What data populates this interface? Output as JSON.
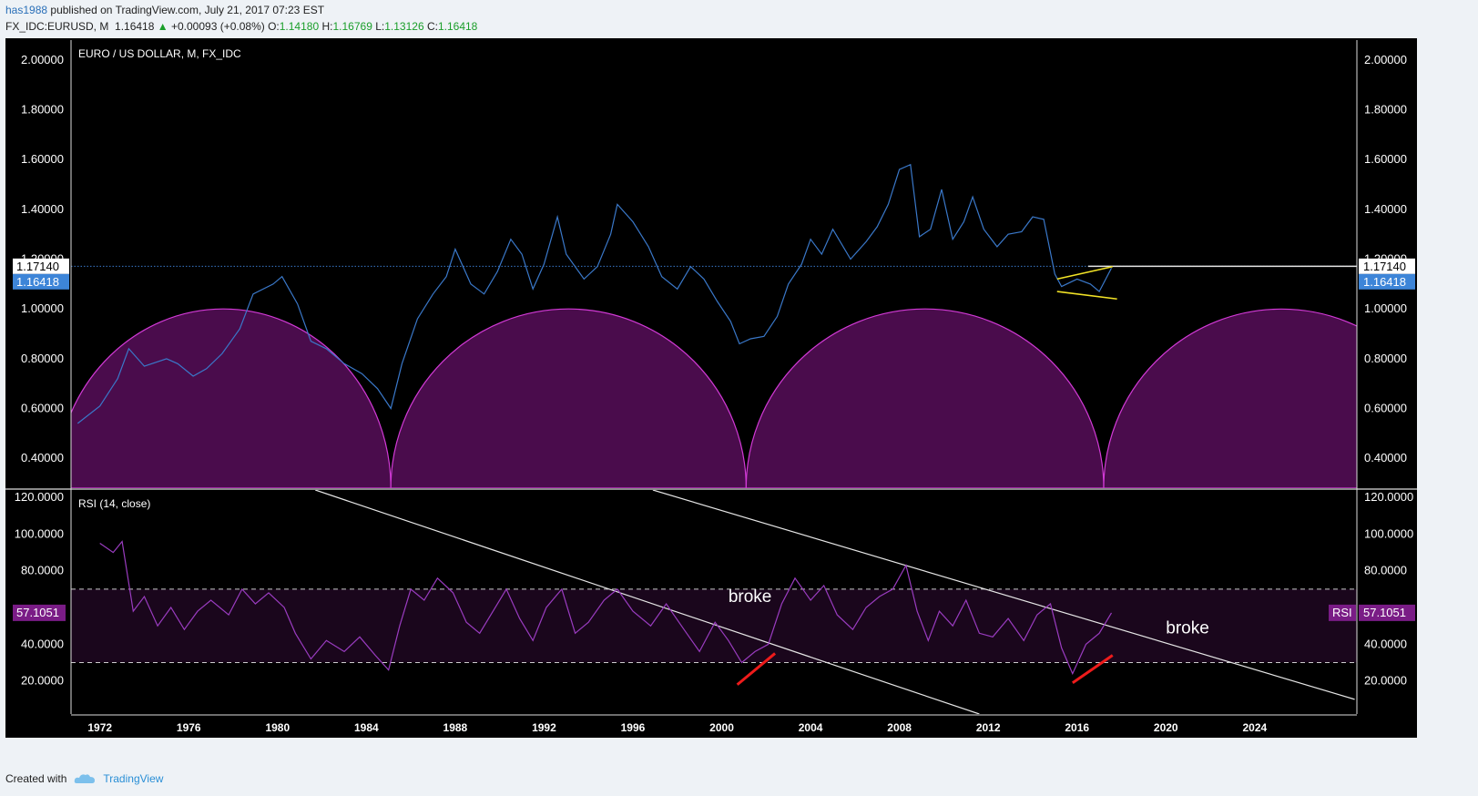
{
  "header": {
    "user": "has1988",
    "published": "published on TradingView.com, July 21, 2017 07:23 EST"
  },
  "symbol_line": {
    "symbol": "FX_IDC:EURUSD, M",
    "last": "1.16418",
    "arrow": "▲",
    "change": "+0.00093 (+0.08%)",
    "o_label": "O:",
    "o": "1.14180",
    "h_label": "H:",
    "h": "1.16769",
    "l_label": "L:",
    "l": "1.13126",
    "c_label": "C:",
    "c": "1.16418"
  },
  "footer": {
    "created": "Created with",
    "brand": "TradingView",
    "logo_icon": "tradingview-cloud-icon"
  },
  "colors": {
    "price_line": "#3a78c9",
    "rsi_line": "#9a3cc0",
    "arc_fill": "#4a0c4c",
    "arc_stroke": "#d23ad6",
    "trend": "#e6e6e6",
    "wedge": "#f2e326",
    "divergence": "#ee1b1b",
    "label_blue": "#3d85d8",
    "label_purple": "#7a1c86"
  },
  "chart_data": [
    {
      "type": "line",
      "pane": "price",
      "title": "EURO / US DOLLAR, M, FX_IDC",
      "ylim": [
        0.28,
        2.08
      ],
      "xlim": [
        1970.7,
        2028.6
      ],
      "ticks": [
        "2.00000",
        "1.80000",
        "1.60000",
        "1.40000",
        "1.20000",
        "1.00000",
        "0.80000",
        "0.60000",
        "0.40000"
      ],
      "tick_values": [
        2.0,
        1.8,
        1.6,
        1.4,
        1.2,
        1.0,
        0.8,
        0.6,
        0.4
      ],
      "grid": false,
      "series": [
        {
          "x": [
            1971.0,
            1972.0,
            1972.8,
            1973.3,
            1974.0,
            1975.0,
            1975.5,
            1976.2,
            1976.8,
            1977.5,
            1978.3,
            1978.9,
            1979.8,
            1980.2,
            1980.9,
            1981.5,
            1982.2,
            1983.0,
            1983.8,
            1984.5,
            1985.1,
            1985.6,
            1986.3,
            1987.0,
            1987.6,
            1988.0,
            1988.7,
            1989.3,
            1989.9,
            1990.5,
            1991.0,
            1991.5,
            1992.0,
            1992.6,
            1993.0,
            1993.8,
            1994.4,
            1995.0,
            1995.3,
            1996.0,
            1996.7,
            1997.3,
            1998.0,
            1998.6,
            1999.2,
            1999.8,
            2000.4,
            2000.8,
            2001.3,
            2001.9,
            2002.5,
            2003.0,
            2003.6,
            2004.0,
            2004.5,
            2005.0,
            2005.8,
            2006.5,
            2007.0,
            2007.5,
            2008.0,
            2008.5,
            2008.9,
            2009.4,
            2009.9,
            2010.4,
            2010.9,
            2011.3,
            2011.8,
            2012.4,
            2012.9,
            2013.5,
            2014.0,
            2014.5,
            2015.0,
            2015.3,
            2016.0,
            2016.6,
            2017.0,
            2017.55
          ],
          "values": [
            0.54,
            0.61,
            0.72,
            0.84,
            0.77,
            0.8,
            0.78,
            0.73,
            0.76,
            0.82,
            0.92,
            1.06,
            1.1,
            1.13,
            1.02,
            0.87,
            0.84,
            0.78,
            0.74,
            0.68,
            0.6,
            0.78,
            0.96,
            1.06,
            1.13,
            1.24,
            1.1,
            1.06,
            1.15,
            1.28,
            1.22,
            1.08,
            1.18,
            1.37,
            1.22,
            1.12,
            1.17,
            1.3,
            1.42,
            1.35,
            1.25,
            1.13,
            1.08,
            1.17,
            1.12,
            1.03,
            0.95,
            0.86,
            0.88,
            0.89,
            0.97,
            1.1,
            1.18,
            1.28,
            1.22,
            1.32,
            1.2,
            1.27,
            1.33,
            1.42,
            1.56,
            1.58,
            1.29,
            1.32,
            1.48,
            1.28,
            1.35,
            1.45,
            1.32,
            1.25,
            1.3,
            1.31,
            1.37,
            1.36,
            1.14,
            1.09,
            1.12,
            1.1,
            1.07,
            1.16418
          ]
        }
      ],
      "annotations": [
        "1.17140",
        "1.16418"
      ],
      "horizontal_line": 1.1714
    },
    {
      "type": "line",
      "pane": "rsi",
      "title": "RSI (14, close)",
      "ylim": [
        2,
        124
      ],
      "ticks": [
        "120.0000",
        "100.0000",
        "80.0000",
        "60.0000",
        "40.0000",
        "20.0000"
      ],
      "tick_values": [
        120,
        100,
        80,
        60,
        40,
        20
      ],
      "bands": [
        30,
        70
      ],
      "series": [
        {
          "name": "RSI",
          "x": [
            1972.0,
            1972.6,
            1973.0,
            1973.5,
            1974.0,
            1974.6,
            1975.2,
            1975.8,
            1976.4,
            1977.0,
            1977.8,
            1978.4,
            1979.0,
            1979.6,
            1980.3,
            1980.8,
            1981.5,
            1982.2,
            1983.0,
            1983.7,
            1984.4,
            1985.0,
            1985.5,
            1986.0,
            1986.6,
            1987.2,
            1987.9,
            1988.5,
            1989.1,
            1989.7,
            1990.3,
            1990.9,
            1991.5,
            1992.1,
            1992.8,
            1993.4,
            1994.0,
            1994.7,
            1995.3,
            1996.0,
            1996.8,
            1997.5,
            1998.3,
            1999.0,
            1999.7,
            2000.3,
            2000.9,
            2001.5,
            2002.1,
            2002.7,
            2003.3,
            2004.0,
            2004.6,
            2005.2,
            2005.9,
            2006.5,
            2007.1,
            2007.7,
            2008.3,
            2008.8,
            2009.3,
            2009.8,
            2010.4,
            2011.0,
            2011.6,
            2012.2,
            2012.9,
            2013.6,
            2014.2,
            2014.8,
            2015.3,
            2015.8,
            2016.4,
            2017.0,
            2017.55
          ],
          "values": [
            95,
            90,
            96,
            58,
            66,
            50,
            60,
            48,
            58,
            64,
            56,
            70,
            62,
            68,
            60,
            46,
            32,
            42,
            36,
            44,
            34,
            26,
            50,
            70,
            64,
            76,
            68,
            52,
            46,
            58,
            70,
            54,
            42,
            60,
            70,
            46,
            52,
            64,
            70,
            58,
            50,
            62,
            48,
            36,
            52,
            42,
            30,
            36,
            40,
            62,
            76,
            64,
            72,
            56,
            48,
            60,
            66,
            70,
            83,
            58,
            42,
            58,
            50,
            64,
            46,
            44,
            54,
            42,
            56,
            62,
            38,
            24,
            40,
            46,
            57.1051
          ]
        }
      ],
      "current_label": "RSI",
      "current_value": "57.1051",
      "annotations": [
        "broke",
        "broke"
      ]
    }
  ],
  "x_axis": {
    "labels": [
      "1972",
      "1976",
      "1980",
      "1984",
      "1988",
      "1992",
      "1996",
      "2000",
      "2004",
      "2008",
      "2012",
      "2016",
      "2020",
      "2024"
    ],
    "values": [
      1972,
      1976,
      1980,
      1984,
      1988,
      1992,
      1996,
      2000,
      2004,
      2008,
      2012,
      2016,
      2020,
      2024
    ]
  },
  "drawings": {
    "arcs": [
      {
        "start": 1970.0,
        "end": 1985.1
      },
      {
        "start": 1985.1,
        "end": 2001.1
      },
      {
        "start": 2001.1,
        "end": 2017.2
      },
      {
        "start": 2017.2,
        "end": 2033.2
      }
    ],
    "arc_top_value": 1.0,
    "rsi_trendlines": [
      {
        "x1": 1981.7,
        "y1": 124,
        "x2": 2011.6,
        "y2": 2
      },
      {
        "x1": 1996.9,
        "y1": 124,
        "x2": 2028.5,
        "y2": 10
      }
    ],
    "price_hline": {
      "x1": 2016.5,
      "x2": 2028.6,
      "value": 1.1714
    },
    "wedge": [
      {
        "x1": 2015.1,
        "y1": 1.12,
        "x2": 2017.6,
        "y2": 1.17
      },
      {
        "x1": 2015.1,
        "y1": 1.07,
        "x2": 2017.8,
        "y2": 1.04
      }
    ],
    "divergence": [
      {
        "x1": 2000.7,
        "y1": 18,
        "x2": 2002.4,
        "y2": 35
      },
      {
        "x1": 2015.8,
        "y1": 19,
        "x2": 2017.6,
        "y2": 34
      }
    ],
    "broke_labels": [
      {
        "x": 2000.3,
        "y": 63
      },
      {
        "x": 2020.0,
        "y": 46
      }
    ]
  }
}
